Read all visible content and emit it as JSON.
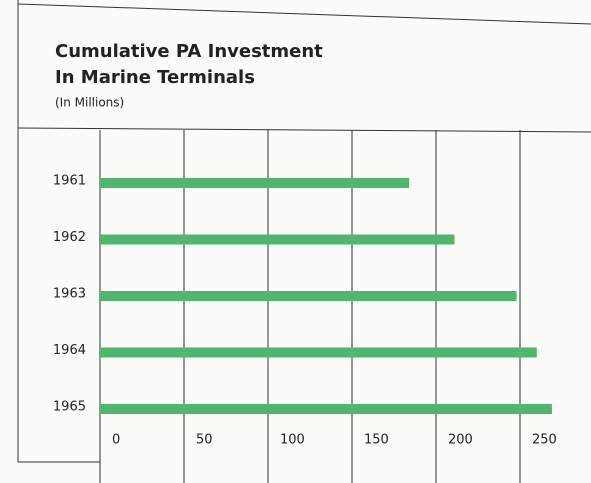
{
  "chart_data": {
    "type": "bar",
    "orientation": "horizontal",
    "title": [
      "Cumulative PA Investment",
      "In Marine Terminals"
    ],
    "subtitle": "(In Millions)",
    "categories": [
      "1961",
      "1962",
      "1963",
      "1964",
      "1965"
    ],
    "values": [
      184,
      211,
      248,
      260,
      269
    ],
    "color": "#4fb56f",
    "xlim": [
      0,
      250
    ],
    "xticks": [
      0,
      50,
      100,
      150,
      200,
      250
    ],
    "grid": true
  }
}
